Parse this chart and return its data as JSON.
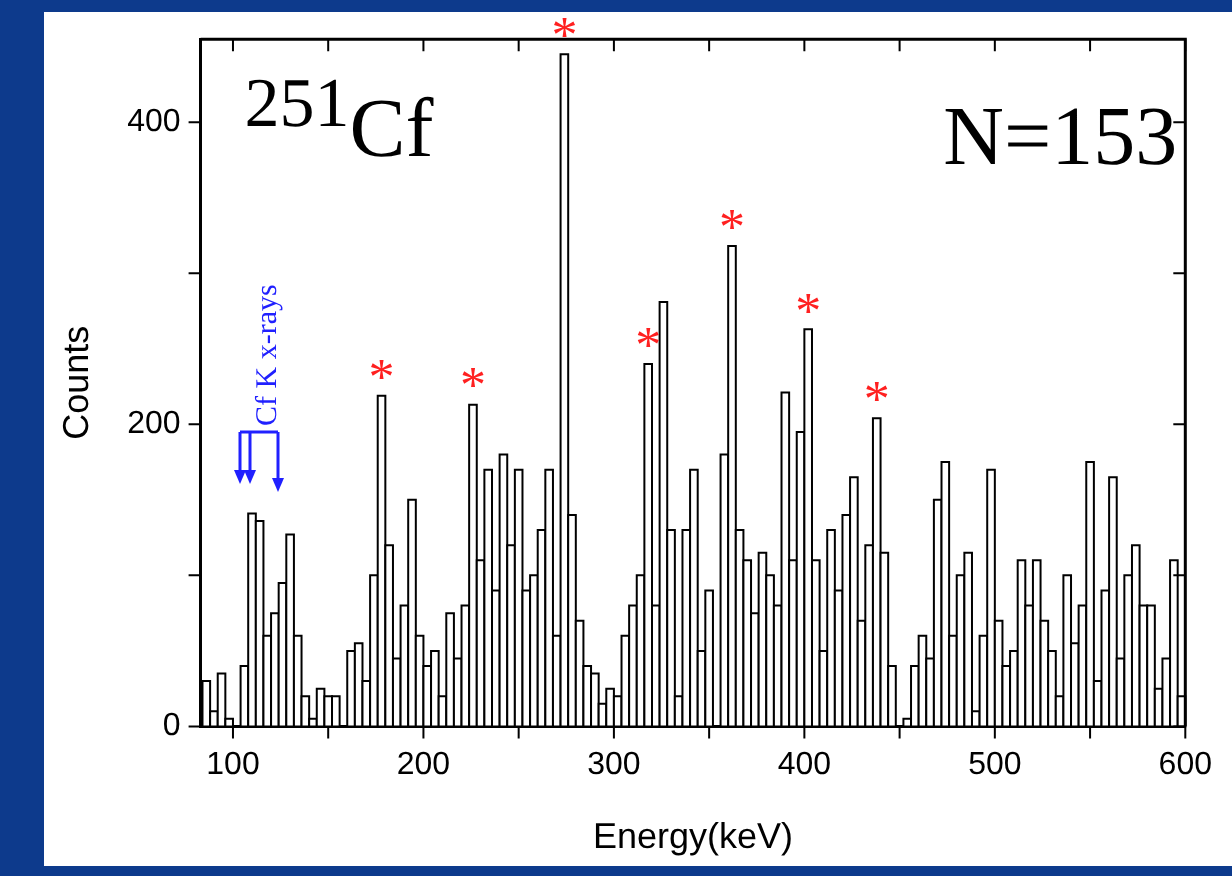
{
  "chart_data": {
    "type": "histogram",
    "xlabel": "Energy(keV)",
    "ylabel": "Counts",
    "color": "#000000",
    "xlim": [
      83,
      600
    ],
    "ylim": [
      0,
      455
    ],
    "xticks": [
      100,
      {
        "value": 150,
        "label": null
      },
      200,
      {
        "value": 250,
        "label": null
      },
      300,
      {
        "value": 350,
        "label": null
      },
      400,
      {
        "value": 450,
        "label": null
      },
      500,
      {
        "value": 550,
        "label": null
      },
      600
    ],
    "yticks": [
      0,
      {
        "value": 100,
        "label": null
      },
      200,
      {
        "value": 300,
        "label": null
      },
      400
    ],
    "grid": false,
    "legend": false,
    "bins": [
      84,
      88,
      92,
      96,
      100,
      104,
      108,
      112,
      116,
      120,
      124,
      128,
      132,
      136,
      140,
      144,
      148,
      152,
      156,
      160,
      164,
      168,
      172,
      176,
      180,
      184,
      188,
      192,
      196,
      200,
      204,
      208,
      212,
      216,
      220,
      224,
      228,
      232,
      236,
      240,
      244,
      248,
      252,
      256,
      260,
      264,
      268,
      272,
      276,
      280,
      284,
      288,
      292,
      296,
      300,
      304,
      308,
      312,
      316,
      320,
      324,
      328,
      332,
      336,
      340,
      344,
      348,
      352,
      356,
      360,
      364,
      368,
      372,
      376,
      380,
      384,
      388,
      392,
      396,
      400,
      404,
      408,
      412,
      416,
      420,
      424,
      428,
      432,
      436,
      440,
      444,
      448,
      452,
      456,
      460,
      464,
      468,
      472,
      476,
      480,
      484,
      488,
      492,
      496,
      500,
      504,
      508,
      512,
      516,
      520,
      524,
      528,
      532,
      536,
      540,
      544,
      548,
      552,
      556,
      560,
      564,
      568,
      572,
      576,
      580,
      584,
      588,
      592,
      596,
      600
    ],
    "values": [
      30,
      10,
      35,
      5,
      0,
      40,
      141,
      136,
      60,
      75,
      95,
      127,
      60,
      20,
      5,
      25,
      20,
      20,
      0,
      50,
      55,
      30,
      100,
      219,
      120,
      45,
      80,
      150,
      60,
      40,
      50,
      20,
      75,
      45,
      80,
      213,
      110,
      170,
      90,
      180,
      120,
      170,
      90,
      100,
      130,
      170,
      60,
      445,
      140,
      70,
      40,
      35,
      15,
      25,
      20,
      60,
      80,
      100,
      240,
      80,
      281,
      130,
      20,
      130,
      170,
      50,
      90,
      0,
      180,
      318,
      130,
      110,
      75,
      115,
      100,
      80,
      221,
      110,
      195,
      263,
      110,
      50,
      130,
      90,
      140,
      165,
      70,
      120,
      204,
      115,
      40,
      0,
      5,
      40,
      60,
      45,
      150,
      175,
      60,
      100,
      115,
      10,
      60,
      170,
      70,
      40,
      50,
      110,
      80,
      110,
      70,
      50,
      20,
      100,
      55,
      80,
      175,
      30,
      90,
      165,
      45,
      100,
      120,
      80,
      80,
      25,
      45,
      110,
      20
    ],
    "annotations": [
      "$^{251}$Cf",
      "N=153",
      "Cf K x-rays",
      {
        "text": "*",
        "x": 178,
        "y": 219
      },
      {
        "text": "*",
        "x": 226,
        "y": 213
      },
      {
        "text": "*",
        "x": 274,
        "y": 445
      },
      {
        "text": "*",
        "x": 318,
        "y": 240
      },
      {
        "text": "*",
        "x": 362,
        "y": 318
      },
      {
        "text": "*",
        "x": 402,
        "y": 263
      },
      {
        "text": "*",
        "x": 438,
        "y": 204
      }
    ]
  }
}
